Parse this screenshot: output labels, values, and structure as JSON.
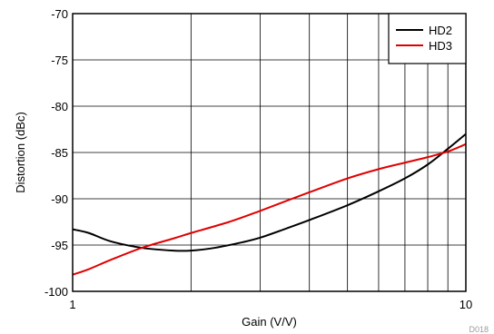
{
  "chart_data": {
    "type": "line",
    "title": "",
    "xlabel": "Gain (V/V)",
    "ylabel": "Distortion (dBc)",
    "xscale": "log",
    "xlim": [
      1,
      10
    ],
    "ylim": [
      -100,
      -70
    ],
    "x_tick_labels": [
      "1",
      "10"
    ],
    "y_ticks": [
      -70,
      -75,
      -80,
      -85,
      -90,
      -95,
      -100
    ],
    "grid": true,
    "legend": "top-right",
    "figure_id": "D018",
    "series": [
      {
        "name": "HD2",
        "color": "#000000",
        "x": [
          1,
          1.1,
          1.25,
          1.5,
          1.8,
          2,
          2.3,
          2.7,
          3,
          3.5,
          4,
          5,
          6,
          7,
          8,
          9,
          10
        ],
        "y": [
          -93.3,
          -93.7,
          -94.6,
          -95.3,
          -95.6,
          -95.6,
          -95.3,
          -94.7,
          -94.2,
          -93.2,
          -92.3,
          -90.7,
          -89.2,
          -87.8,
          -86.3,
          -84.6,
          -83.0
        ]
      },
      {
        "name": "HD3",
        "color": "#e00000",
        "x": [
          1,
          1.1,
          1.25,
          1.5,
          1.8,
          2,
          2.5,
          3,
          4,
          5,
          6,
          7,
          8,
          9,
          10
        ],
        "y": [
          -98.2,
          -97.6,
          -96.6,
          -95.3,
          -94.3,
          -93.7,
          -92.5,
          -91.3,
          -89.3,
          -87.8,
          -86.8,
          -86.1,
          -85.5,
          -84.9,
          -84.1
        ]
      }
    ]
  }
}
